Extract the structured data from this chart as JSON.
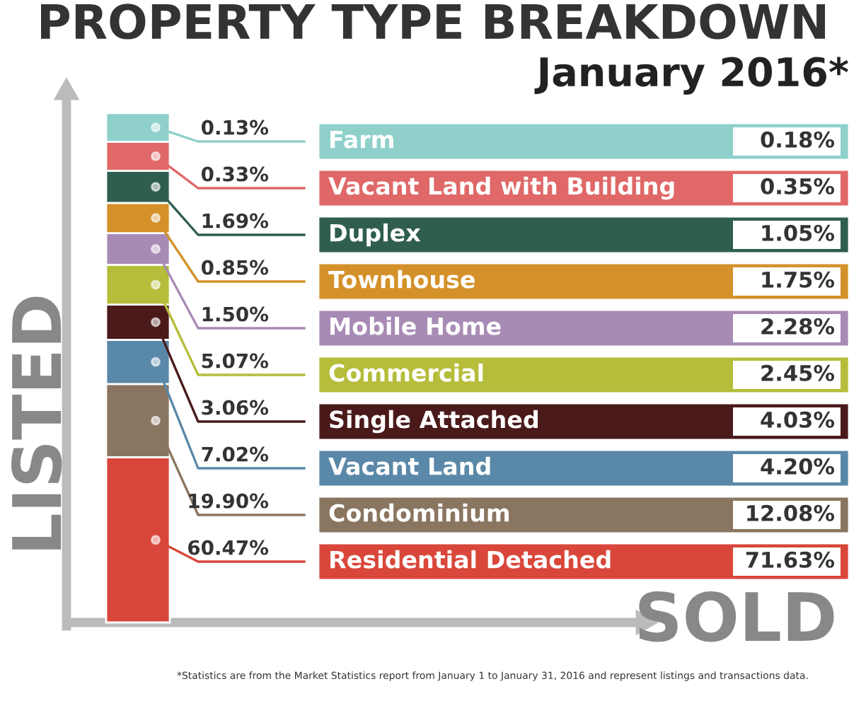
{
  "chart_data": {
    "type": "other",
    "title": "PROPERTY TYPE BREAKDOWN",
    "subtitle": "January 2016*",
    "ylabel": "LISTED",
    "xlabel": "SOLD",
    "categories": [
      "Farm",
      "Vacant Land with Building",
      "Duplex",
      "Townhouse",
      "Mobile Home",
      "Commercial",
      "Single Attached",
      "Vacant Land",
      "Condominium",
      "Residential Detached"
    ],
    "colors": [
      "#8fd0cb",
      "#e06868",
      "#2f5e50",
      "#d4912a",
      "#a88bb5",
      "#b5bd3a",
      "#4a1a1a",
      "#5a88a8",
      "#8a7560",
      "#d9463a"
    ],
    "series": [
      {
        "values": [
          0.13,
          0.33,
          1.69,
          0.85,
          1.5,
          5.07,
          3.06,
          7.02,
          19.9,
          60.47
        ],
        "value_labels": [
          "0.13%",
          "0.33%",
          "1.69%",
          "0.85%",
          "1.50%",
          "5.07%",
          "3.06%",
          "7.02%",
          "19.90%",
          "60.47%"
        ]
      },
      {
        "values": [
          0.18,
          0.35,
          1.05,
          1.75,
          2.28,
          2.45,
          4.03,
          4.2,
          12.08,
          71.63
        ],
        "value_labels": [
          "0.18%",
          "0.35%",
          "1.05%",
          "1.75%",
          "2.28%",
          "2.45%",
          "4.03%",
          "4.20%",
          "12.08%",
          "71.63%"
        ]
      }
    ],
    "annotations": [
      "*Statistics are from the Market Statistics report from January 1 to January 31, 2016 and represent listings and transactions data."
    ]
  }
}
